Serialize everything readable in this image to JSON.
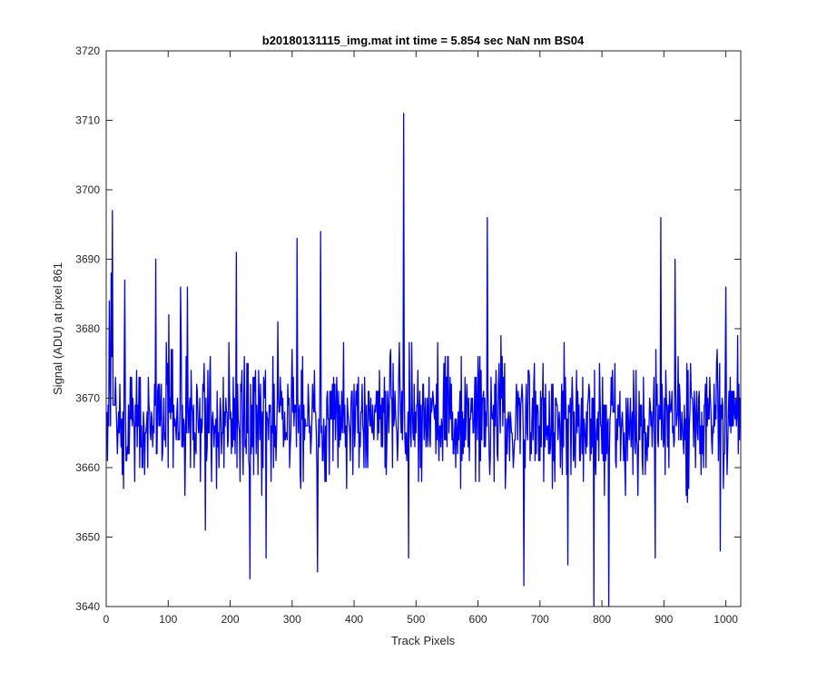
{
  "chart_data": {
    "type": "line",
    "title": "b20180131115_img.mat int time = 5.854 sec  NaN nm BS04",
    "xlabel": "Track Pixels",
    "ylabel": "Signal (ADU) at pixel 861",
    "xlim": [
      0,
      1024
    ],
    "ylim": [
      3640,
      3720
    ],
    "xticks": [
      0,
      100,
      200,
      300,
      400,
      500,
      600,
      700,
      800,
      900,
      1000
    ],
    "yticks": [
      3640,
      3650,
      3660,
      3670,
      3680,
      3690,
      3700,
      3710,
      3720
    ],
    "grid": false,
    "line_color": "#0000ff",
    "series": [
      {
        "name": "",
        "x_start": 1,
        "x_step": 1,
        "n_points": 1024,
        "baseline_mean": 3667,
        "typical_range": [
          3647,
          3690
        ],
        "peaks": [
          {
            "x": 5,
            "y": 3684
          },
          {
            "x": 8,
            "y": 3688
          },
          {
            "x": 10,
            "y": 3697
          },
          {
            "x": 30,
            "y": 3687
          },
          {
            "x": 80,
            "y": 3690
          },
          {
            "x": 120,
            "y": 3686
          },
          {
            "x": 131,
            "y": 3686
          },
          {
            "x": 210,
            "y": 3691
          },
          {
            "x": 308,
            "y": 3693
          },
          {
            "x": 346,
            "y": 3694
          },
          {
            "x": 480,
            "y": 3711
          },
          {
            "x": 615,
            "y": 3696
          },
          {
            "x": 895,
            "y": 3696
          },
          {
            "x": 918,
            "y": 3690
          },
          {
            "x": 1000,
            "y": 3686
          }
        ],
        "troughs": [
          {
            "x": 232,
            "y": 3644
          },
          {
            "x": 258,
            "y": 3647
          },
          {
            "x": 341,
            "y": 3645
          },
          {
            "x": 488,
            "y": 3647
          },
          {
            "x": 674,
            "y": 3643
          },
          {
            "x": 745,
            "y": 3646
          },
          {
            "x": 787,
            "y": 3640
          },
          {
            "x": 811,
            "y": 3640
          },
          {
            "x": 886,
            "y": 3647
          },
          {
            "x": 991,
            "y": 3648
          }
        ]
      }
    ]
  }
}
